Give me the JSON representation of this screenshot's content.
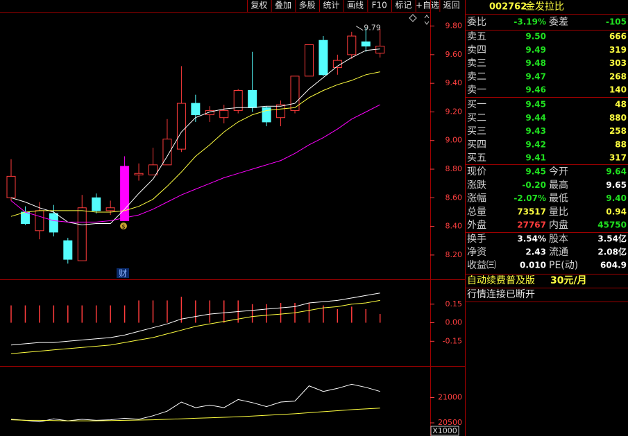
{
  "toolbar": [
    "复权",
    "叠加",
    "多股",
    "统计",
    "画线",
    "F10",
    "标记",
    "+自选",
    "返回"
  ],
  "quote": {
    "code": "002762",
    "name": "金发拉比",
    "ratio": [
      "委比",
      "-3.19%",
      "委差",
      "-105"
    ],
    "asks": [
      [
        "卖五",
        "9.50",
        "666"
      ],
      [
        "卖四",
        "9.49",
        "319"
      ],
      [
        "卖三",
        "9.48",
        "303"
      ],
      [
        "卖二",
        "9.47",
        "268"
      ],
      [
        "卖一",
        "9.46",
        "140"
      ]
    ],
    "bids": [
      [
        "买一",
        "9.45",
        "48"
      ],
      [
        "买二",
        "9.44",
        "880"
      ],
      [
        "买三",
        "9.43",
        "258"
      ],
      [
        "买四",
        "9.42",
        "88"
      ],
      [
        "买五",
        "9.41",
        "317"
      ]
    ],
    "stats": [
      [
        "现价",
        "9.45",
        "今开",
        "9.64"
      ],
      [
        "涨跌",
        "-0.20",
        "最高",
        "9.65"
      ],
      [
        "涨幅",
        "-2.07%",
        "最低",
        "9.40"
      ],
      [
        "总量",
        "73517",
        "量比",
        "0.94"
      ],
      [
        "外盘",
        "27767",
        "内盘",
        "45750"
      ]
    ],
    "stat_colors": [
      [
        "#20e020",
        "#20e020"
      ],
      [
        "#20e020",
        "#ffffff"
      ],
      [
        "#20e020",
        "#20e020"
      ],
      [
        "#ffff40",
        "#ffff40"
      ],
      [
        "#ff3c3c",
        "#20e020"
      ]
    ],
    "fundamentals": [
      [
        "换手",
        "3.54%",
        "股本",
        "3.54亿"
      ],
      [
        "净资",
        "2.43",
        "流通",
        "2.08亿"
      ],
      [
        "收益㈢",
        "0.010",
        "PE(动)",
        "604.9"
      ]
    ],
    "promo": [
      "自动续费普及版",
      "30元/月"
    ],
    "status": "行情连接已断开"
  },
  "event_label": "财",
  "chart_data": [
    {
      "type": "candlestick",
      "high_label": "9.79",
      "up_color": "#ff3c3c",
      "down_color": "#54fcfc",
      "highlight": {
        "index": 8,
        "color": "#ff00ff"
      },
      "open": [
        8.6,
        8.5,
        8.37,
        8.49,
        8.3,
        8.16,
        8.6,
        8.51,
        8.44,
        8.76,
        8.76,
        8.83,
        8.94,
        9.26,
        9.18,
        9.16,
        9.21,
        9.35,
        9.23,
        9.16,
        9.21,
        9.45,
        9.7,
        9.51,
        9.6,
        9.69,
        9.61
      ],
      "close": [
        8.75,
        8.42,
        8.51,
        8.36,
        8.17,
        8.53,
        8.51,
        8.53,
        8.82,
        8.77,
        8.83,
        9.01,
        9.26,
        9.18,
        9.21,
        9.21,
        9.35,
        9.23,
        9.13,
        9.25,
        9.45,
        9.67,
        9.46,
        9.56,
        9.73,
        9.66,
        9.66
      ],
      "high": [
        8.87,
        8.54,
        8.57,
        8.55,
        8.32,
        8.62,
        8.63,
        8.58,
        8.89,
        8.84,
        8.95,
        9.15,
        9.52,
        9.32,
        9.24,
        9.25,
        9.36,
        9.62,
        9.24,
        9.28,
        9.45,
        9.67,
        9.73,
        9.6,
        9.76,
        9.79,
        9.78
      ],
      "low": [
        8.58,
        8.41,
        8.31,
        8.33,
        8.14,
        8.16,
        8.49,
        8.48,
        8.44,
        8.72,
        8.76,
        8.83,
        8.92,
        9.13,
        9.13,
        9.12,
        9.19,
        9.2,
        9.1,
        9.1,
        9.19,
        9.45,
        9.45,
        9.46,
        9.57,
        9.62,
        9.58
      ],
      "series": [
        {
          "color": "#ffffff",
          "values": [
            8.6,
            8.57,
            8.53,
            8.5,
            8.43,
            8.41,
            8.42,
            8.42,
            8.52,
            8.63,
            8.73,
            8.89,
            9.06,
            9.16,
            9.2,
            9.22,
            9.23,
            9.23,
            9.24,
            9.24,
            9.26,
            9.36,
            9.44,
            9.52,
            9.58,
            9.63,
            9.64
          ]
        },
        {
          "color": "#ffff40",
          "values": [
            8.47,
            8.5,
            8.51,
            8.51,
            8.51,
            8.51,
            8.5,
            8.5,
            8.51,
            8.54,
            8.59,
            8.68,
            8.78,
            8.89,
            8.97,
            9.06,
            9.13,
            9.18,
            9.21,
            9.22,
            9.23,
            9.3,
            9.35,
            9.39,
            9.42,
            9.46,
            9.48
          ]
        },
        {
          "color": "#ff00ff",
          "values": [
            8.58,
            8.5,
            8.47,
            8.44,
            8.43,
            8.43,
            8.43,
            8.44,
            8.46,
            8.48,
            8.52,
            8.57,
            8.62,
            8.66,
            8.7,
            8.74,
            8.77,
            8.8,
            8.83,
            8.86,
            8.91,
            8.97,
            9.02,
            9.08,
            9.15,
            9.2,
            9.25
          ]
        }
      ],
      "ylim": [
        8.03,
        9.89
      ],
      "yticks": [
        {
          "value": 9.8,
          "label": "9.80"
        },
        {
          "value": 9.6,
          "label": "9.60"
        },
        {
          "value": 9.4,
          "label": "9.40"
        },
        {
          "value": 9.2,
          "label": "9.20"
        },
        {
          "value": 9.0,
          "label": "9.00"
        },
        {
          "value": 8.8,
          "label": "8.80"
        },
        {
          "value": 8.6,
          "label": "8.60"
        },
        {
          "value": 8.4,
          "label": "8.40"
        },
        {
          "value": 8.2,
          "label": "8.20"
        }
      ]
    },
    {
      "type": "macd",
      "bar_color": "#ff3c3c",
      "values": [
        0.14,
        0.14,
        0.14,
        0.14,
        0.14,
        0.14,
        0.14,
        0.14,
        0.14,
        0.18,
        0.18,
        0.18,
        0.21,
        0.18,
        0.18,
        0.18,
        0.18,
        0.15,
        0.15,
        0.16,
        0.16,
        0.16,
        0.14,
        0.11,
        0.13,
        0.11,
        0.07
      ],
      "series": [
        {
          "color": "#ffffff",
          "values": [
            -0.18,
            -0.17,
            -0.16,
            -0.16,
            -0.15,
            -0.14,
            -0.13,
            -0.12,
            -0.1,
            -0.07,
            -0.04,
            -0.01,
            0.03,
            0.05,
            0.07,
            0.08,
            0.09,
            0.1,
            0.11,
            0.12,
            0.13,
            0.16,
            0.17,
            0.18,
            0.2,
            0.22,
            0.24
          ]
        },
        {
          "color": "#ffff40",
          "values": [
            -0.25,
            -0.24,
            -0.23,
            -0.22,
            -0.21,
            -0.2,
            -0.19,
            -0.18,
            -0.16,
            -0.14,
            -0.12,
            -0.09,
            -0.06,
            -0.03,
            -0.01,
            0.01,
            0.03,
            0.05,
            0.06,
            0.07,
            0.08,
            0.1,
            0.12,
            0.13,
            0.15,
            0.16,
            0.18
          ]
        }
      ],
      "ylim": [
        -0.35,
        0.345
      ],
      "yticks": [
        0.15,
        {
          "value": 0,
          "label": "0.00"
        },
        -0.15
      ]
    },
    {
      "type": "line",
      "unit_label": "X1000",
      "series": [
        {
          "color": "#ffffff",
          "values": [
            20570,
            20550,
            20520,
            20580,
            20540,
            20570,
            20550,
            20560,
            20590,
            20570,
            20640,
            20730,
            20910,
            20800,
            20850,
            20800,
            20960,
            20900,
            20820,
            20910,
            20930,
            21230,
            21120,
            21180,
            21260,
            21200,
            21120
          ]
        },
        {
          "color": "#ffff40",
          "values": [
            20560,
            20550,
            20550,
            20545,
            20540,
            20540,
            20540,
            20545,
            20550,
            20555,
            20560,
            20570,
            20580,
            20590,
            20600,
            20610,
            20620,
            20635,
            20650,
            20665,
            20680,
            20700,
            20720,
            20740,
            20760,
            20775,
            20790
          ]
        }
      ],
      "ylim": [
        20432,
        21608
      ],
      "yticks": [
        21000,
        20500
      ]
    }
  ]
}
